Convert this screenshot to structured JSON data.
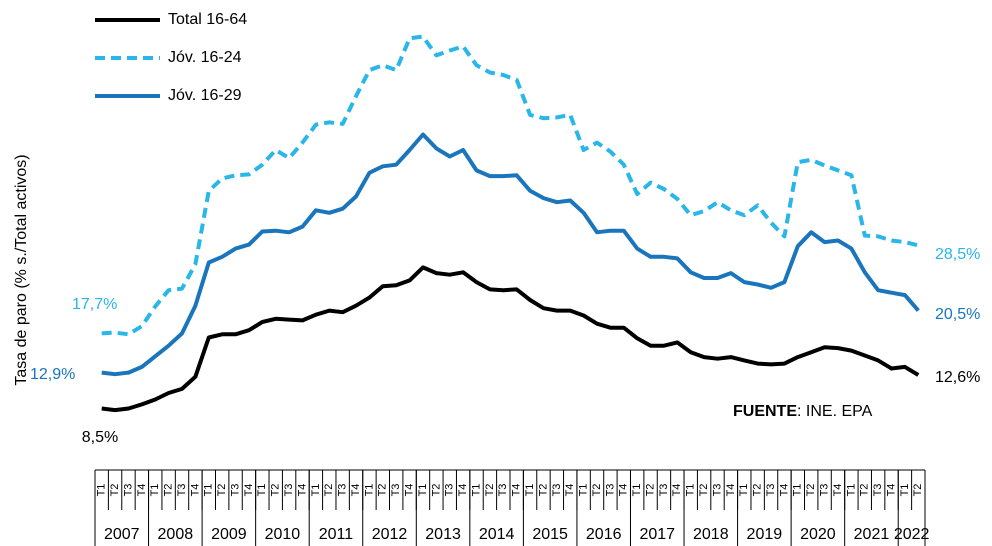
{
  "chart_data": {
    "type": "line",
    "y_label": "Tasa de paro (% s./Total activos)",
    "source_label": "FUENTE",
    "source_text": ": INE. EPA",
    "categories": [
      "T1",
      "T2",
      "T3",
      "T4",
      "T1",
      "T2",
      "T3",
      "T4",
      "T1",
      "T2",
      "T3",
      "T4",
      "T1",
      "T2",
      "T3",
      "T4",
      "T1",
      "T2",
      "T3",
      "T4",
      "T1",
      "T2",
      "T3",
      "T4",
      "T1",
      "T2",
      "T3",
      "T4",
      "T1",
      "T2",
      "T3",
      "T4",
      "T1",
      "T2",
      "T3",
      "T4",
      "T1",
      "T2",
      "T3",
      "T4",
      "T1",
      "T2",
      "T3",
      "T4",
      "T1",
      "T2",
      "T3",
      "T4",
      "T1",
      "T2",
      "T3",
      "T4",
      "T1",
      "T2",
      "T3",
      "T4",
      "T1",
      "T2",
      "T3",
      "T4",
      "T1",
      "T2"
    ],
    "years": [
      "2007",
      "2008",
      "2009",
      "2010",
      "2011",
      "2012",
      "2013",
      "2014",
      "2015",
      "2016",
      "2017",
      "2018",
      "2019",
      "2020",
      "2021",
      "2022"
    ],
    "ylim": [
      5,
      57
    ],
    "series": [
      {
        "name": "Total 16-64",
        "color": "#000000",
        "dash": false,
        "values": [
          8.5,
          8.3,
          8.5,
          9.0,
          9.6,
          10.4,
          10.9,
          12.4,
          17.2,
          17.6,
          17.6,
          18.1,
          19.1,
          19.5,
          19.4,
          19.3,
          20.0,
          20.5,
          20.3,
          21.1,
          22.1,
          23.5,
          23.6,
          24.2,
          25.8,
          25.1,
          24.9,
          25.2,
          24.0,
          23.1,
          23.0,
          23.1,
          21.8,
          20.8,
          20.5,
          20.5,
          19.9,
          18.9,
          18.4,
          18.4,
          17.1,
          16.2,
          16.2,
          16.6,
          15.4,
          14.8,
          14.6,
          14.8,
          14.4,
          14.0,
          13.9,
          14.0,
          14.8,
          15.4,
          16.0,
          15.9,
          15.6,
          15.0,
          14.4,
          13.4,
          13.6,
          12.6
        ],
        "value_labels": [
          "8,5%",
          null,
          null,
          null,
          null,
          null,
          null,
          null,
          null,
          null,
          null,
          null,
          null,
          null,
          null,
          null,
          null,
          null,
          null,
          null,
          null,
          null,
          null,
          null,
          null,
          null,
          null,
          null,
          null,
          null,
          null,
          null,
          null,
          null,
          null,
          null,
          null,
          null,
          null,
          null,
          null,
          null,
          null,
          null,
          null,
          null,
          null,
          null,
          null,
          null,
          null,
          null,
          null,
          null,
          null,
          null,
          null,
          null,
          null,
          null,
          null,
          "12,6%"
        ]
      },
      {
        "name": "Jóv. 16-24",
        "color": "#29b6e8",
        "dash": true,
        "values": [
          17.7,
          17.8,
          17.6,
          18.6,
          21.0,
          23.0,
          23.2,
          26.2,
          35.2,
          36.7,
          37.1,
          37.2,
          38.4,
          40.2,
          39.2,
          41.1,
          43.3,
          43.6,
          43.4,
          46.8,
          50.0,
          50.6,
          50.0,
          53.9,
          54.1,
          51.8,
          52.4,
          52.9,
          50.6,
          49.7,
          49.4,
          48.8,
          44.5,
          44.1,
          44.2,
          44.5,
          40.2,
          41.1,
          40.0,
          38.4,
          34.8,
          36.2,
          35.4,
          34.2,
          32.2,
          32.7,
          33.8,
          32.8,
          32.2,
          33.4,
          31.3,
          29.6,
          38.7,
          39.0,
          38.3,
          37.7,
          37.1,
          29.7,
          29.6,
          29.1,
          28.9,
          28.5
        ],
        "value_labels": [
          "17,7%",
          null,
          null,
          null,
          null,
          null,
          null,
          null,
          null,
          null,
          null,
          null,
          null,
          null,
          null,
          null,
          null,
          null,
          null,
          null,
          null,
          null,
          null,
          null,
          null,
          null,
          null,
          null,
          null,
          null,
          null,
          null,
          null,
          null,
          null,
          null,
          null,
          null,
          null,
          null,
          null,
          null,
          null,
          null,
          null,
          null,
          null,
          null,
          null,
          null,
          null,
          null,
          null,
          null,
          null,
          null,
          null,
          null,
          null,
          null,
          null,
          "28,5%"
        ]
      },
      {
        "name": "Jóv. 16-29",
        "color": "#1a75bc",
        "dash": false,
        "values": [
          12.9,
          12.7,
          12.9,
          13.6,
          14.9,
          16.2,
          17.7,
          21.1,
          26.4,
          27.1,
          28.1,
          28.6,
          30.2,
          30.3,
          30.1,
          30.8,
          32.8,
          32.5,
          33.0,
          34.5,
          37.4,
          38.2,
          38.4,
          40.2,
          42.1,
          40.4,
          39.4,
          40.2,
          37.7,
          37.0,
          37.0,
          37.1,
          35.2,
          34.3,
          33.8,
          34.0,
          32.5,
          30.1,
          30.3,
          30.3,
          28.1,
          27.1,
          27.1,
          26.9,
          25.2,
          24.5,
          24.5,
          25.1,
          24.0,
          23.7,
          23.3,
          24.0,
          28.4,
          30.1,
          28.9,
          29.1,
          28.1,
          25.2,
          23.0,
          22.7,
          22.4,
          20.5
        ],
        "value_labels": [
          "12,9%",
          null,
          null,
          null,
          null,
          null,
          null,
          null,
          null,
          null,
          null,
          null,
          null,
          null,
          null,
          null,
          null,
          null,
          null,
          null,
          null,
          null,
          null,
          null,
          null,
          null,
          null,
          null,
          null,
          null,
          null,
          null,
          null,
          null,
          null,
          null,
          null,
          null,
          null,
          null,
          null,
          null,
          null,
          null,
          null,
          null,
          null,
          null,
          null,
          null,
          null,
          null,
          null,
          null,
          null,
          null,
          null,
          null,
          null,
          null,
          null,
          "20,5%"
        ]
      }
    ]
  }
}
